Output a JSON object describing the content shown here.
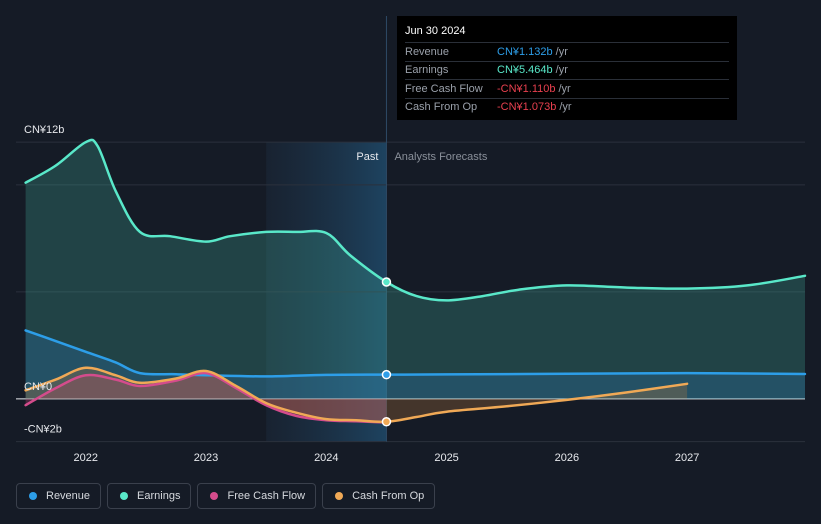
{
  "chart_data": {
    "type": "area",
    "x_range": [
      2021.42,
      2027.98
    ],
    "ylim": [
      -3.0,
      13.5
    ],
    "x_ticks": [
      {
        "x": 2022,
        "label": "2022"
      },
      {
        "x": 2023,
        "label": "2023"
      },
      {
        "x": 2024,
        "label": "2024"
      },
      {
        "x": 2025,
        "label": "2025"
      },
      {
        "x": 2026,
        "label": "2026"
      },
      {
        "x": 2027,
        "label": "2027"
      }
    ],
    "y_labels": [
      {
        "y": 12,
        "label": "CN¥12b"
      },
      {
        "y": 0,
        "label": "CN¥0"
      },
      {
        "y": -2,
        "label": "-CN¥2b"
      }
    ],
    "gridlines": [
      12,
      10,
      5,
      -2
    ],
    "divider_x": 2024.5,
    "shade_start_x": 2023.5,
    "past_label": "Past",
    "forecast_label": "Analysts Forecasts",
    "series": [
      {
        "name": "Earnings",
        "color": "#59e8c9",
        "fill": "area",
        "points": [
          [
            2021.5,
            10.1
          ],
          [
            2021.75,
            10.9
          ],
          [
            2022.0,
            12.0
          ],
          [
            2022.1,
            11.8
          ],
          [
            2022.25,
            9.7
          ],
          [
            2022.45,
            7.8
          ],
          [
            2022.7,
            7.6
          ],
          [
            2023.0,
            7.35
          ],
          [
            2023.2,
            7.6
          ],
          [
            2023.5,
            7.8
          ],
          [
            2023.75,
            7.8
          ],
          [
            2024.0,
            7.75
          ],
          [
            2024.2,
            6.7
          ],
          [
            2024.5,
            5.46
          ],
          [
            2024.75,
            4.8
          ],
          [
            2025.0,
            4.6
          ],
          [
            2025.3,
            4.8
          ],
          [
            2025.6,
            5.1
          ],
          [
            2026.0,
            5.3
          ],
          [
            2026.5,
            5.2
          ],
          [
            2027.0,
            5.15
          ],
          [
            2027.5,
            5.3
          ],
          [
            2027.98,
            5.75
          ]
        ]
      },
      {
        "name": "Revenue",
        "color": "#2d9ee8",
        "fill": "area",
        "points": [
          [
            2021.5,
            3.2
          ],
          [
            2021.75,
            2.7
          ],
          [
            2022.0,
            2.2
          ],
          [
            2022.25,
            1.7
          ],
          [
            2022.45,
            1.2
          ],
          [
            2022.75,
            1.15
          ],
          [
            2023.0,
            1.1
          ],
          [
            2023.5,
            1.05
          ],
          [
            2024.0,
            1.12
          ],
          [
            2024.5,
            1.13
          ],
          [
            2025.0,
            1.14
          ],
          [
            2026.0,
            1.17
          ],
          [
            2027.0,
            1.2
          ],
          [
            2027.98,
            1.16
          ]
        ]
      },
      {
        "name": "Free Cash Flow",
        "color": "#d44c8c",
        "fill": "area",
        "points": [
          [
            2021.5,
            -0.3
          ],
          [
            2021.75,
            0.5
          ],
          [
            2022.0,
            1.1
          ],
          [
            2022.25,
            0.9
          ],
          [
            2022.45,
            0.6
          ],
          [
            2022.75,
            0.85
          ],
          [
            2023.0,
            1.2
          ],
          [
            2023.25,
            0.5
          ],
          [
            2023.5,
            -0.3
          ],
          [
            2023.75,
            -0.8
          ],
          [
            2024.0,
            -1.0
          ],
          [
            2024.25,
            -1.05
          ],
          [
            2024.5,
            -1.11
          ]
        ]
      },
      {
        "name": "Cash From Op",
        "color": "#f0a956",
        "fill": "area",
        "points": [
          [
            2021.5,
            0.4
          ],
          [
            2021.75,
            0.9
          ],
          [
            2022.0,
            1.45
          ],
          [
            2022.25,
            1.1
          ],
          [
            2022.45,
            0.75
          ],
          [
            2022.75,
            0.95
          ],
          [
            2023.0,
            1.3
          ],
          [
            2023.25,
            0.6
          ],
          [
            2023.5,
            -0.2
          ],
          [
            2023.75,
            -0.65
          ],
          [
            2024.0,
            -0.95
          ],
          [
            2024.25,
            -1.0
          ],
          [
            2024.5,
            -1.073
          ],
          [
            2024.75,
            -0.85
          ],
          [
            2025.0,
            -0.6
          ],
          [
            2025.5,
            -0.35
          ],
          [
            2026.0,
            -0.05
          ],
          [
            2026.5,
            0.3
          ],
          [
            2027.0,
            0.7
          ]
        ]
      }
    ]
  },
  "tooltip": {
    "date": "Jun 30 2024",
    "rows": [
      {
        "label": "Revenue",
        "value": "CN¥1.132b",
        "unit": "/yr",
        "color": "#2d9ee8"
      },
      {
        "label": "Earnings",
        "value": "CN¥5.464b",
        "unit": "/yr",
        "color": "#59e8c9"
      },
      {
        "label": "Free Cash Flow",
        "value": "-CN¥1.110b",
        "unit": "/yr",
        "color": "#e8404f"
      },
      {
        "label": "Cash From Op",
        "value": "-CN¥1.073b",
        "unit": "/yr",
        "color": "#e8404f"
      }
    ]
  },
  "legend": [
    {
      "label": "Revenue",
      "color": "#2d9ee8"
    },
    {
      "label": "Earnings",
      "color": "#59e8c9"
    },
    {
      "label": "Free Cash Flow",
      "color": "#d44c8c"
    },
    {
      "label": "Cash From Op",
      "color": "#f0a956"
    }
  ]
}
